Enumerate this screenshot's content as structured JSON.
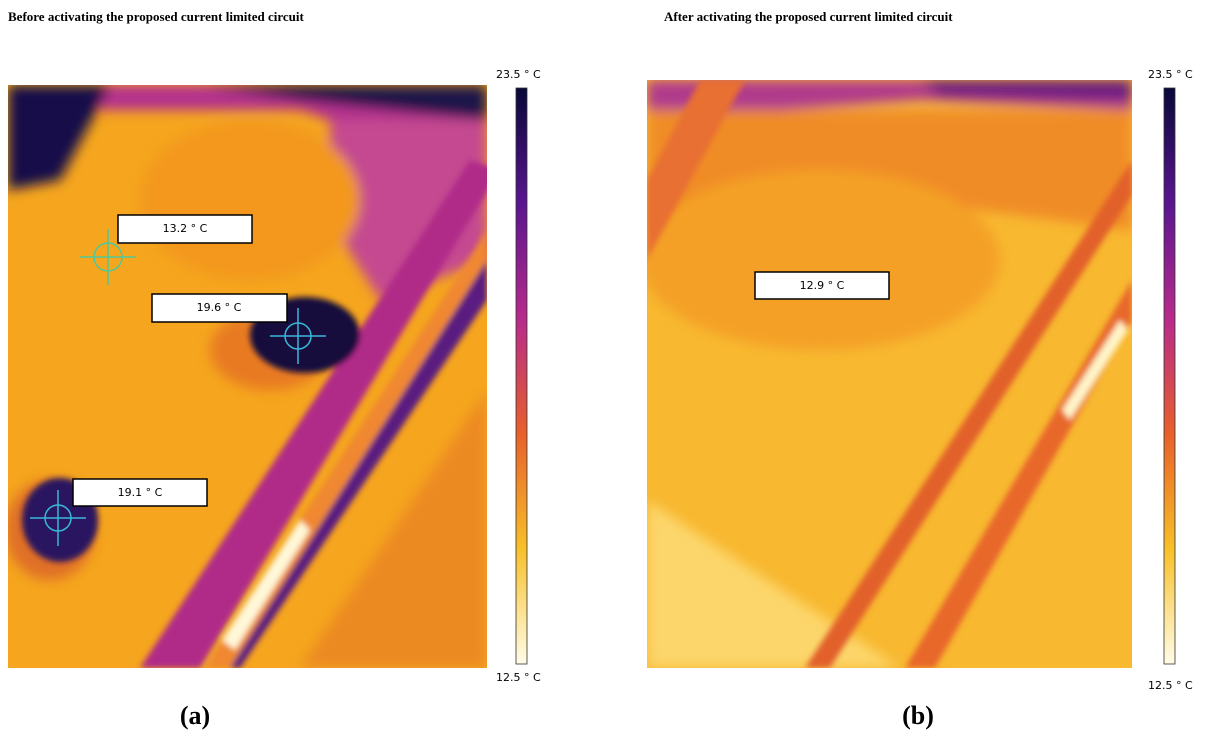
{
  "panels": [
    {
      "title": "Before activating the proposed current limited circuit",
      "scale_max": "23.5 ° C",
      "scale_min": "12.5 ° C",
      "spots": [
        "13.2 ° C",
        "19.6 ° C",
        "19.1 ° C"
      ],
      "caption": "(a)"
    },
    {
      "title": "After activating the proposed current limited circuit",
      "scale_max": "23.5 ° C",
      "scale_min": "12.5 ° C",
      "spots": [
        "12.9 ° C"
      ],
      "caption": "(b)"
    }
  ]
}
